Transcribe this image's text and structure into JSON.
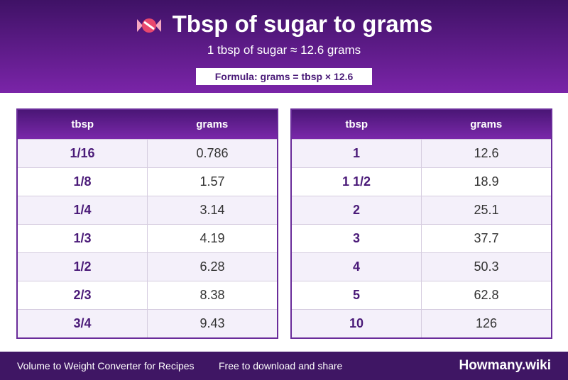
{
  "header": {
    "title": "Tbsp of sugar to grams",
    "subtitle": "1 tbsp of sugar ≈ 12.6 grams",
    "formula": "Formula: grams = tbsp × 12.6"
  },
  "tables": [
    {
      "columns": [
        "tbsp",
        "grams"
      ],
      "rows": [
        [
          "1/16",
          "0.786"
        ],
        [
          "1/8",
          "1.57"
        ],
        [
          "1/4",
          "3.14"
        ],
        [
          "1/3",
          "4.19"
        ],
        [
          "1/2",
          "6.28"
        ],
        [
          "2/3",
          "8.38"
        ],
        [
          "3/4",
          "9.43"
        ]
      ]
    },
    {
      "columns": [
        "tbsp",
        "grams"
      ],
      "rows": [
        [
          "1",
          "12.6"
        ],
        [
          "1 1/2",
          "18.9"
        ],
        [
          "2",
          "25.1"
        ],
        [
          "3",
          "37.7"
        ],
        [
          "4",
          "50.3"
        ],
        [
          "5",
          "62.8"
        ],
        [
          "10",
          "126"
        ]
      ]
    }
  ],
  "footer": {
    "left": "Volume to Weight Converter for Recipes",
    "middle": "Free to download and share",
    "brand": "Howmany.wiki"
  }
}
